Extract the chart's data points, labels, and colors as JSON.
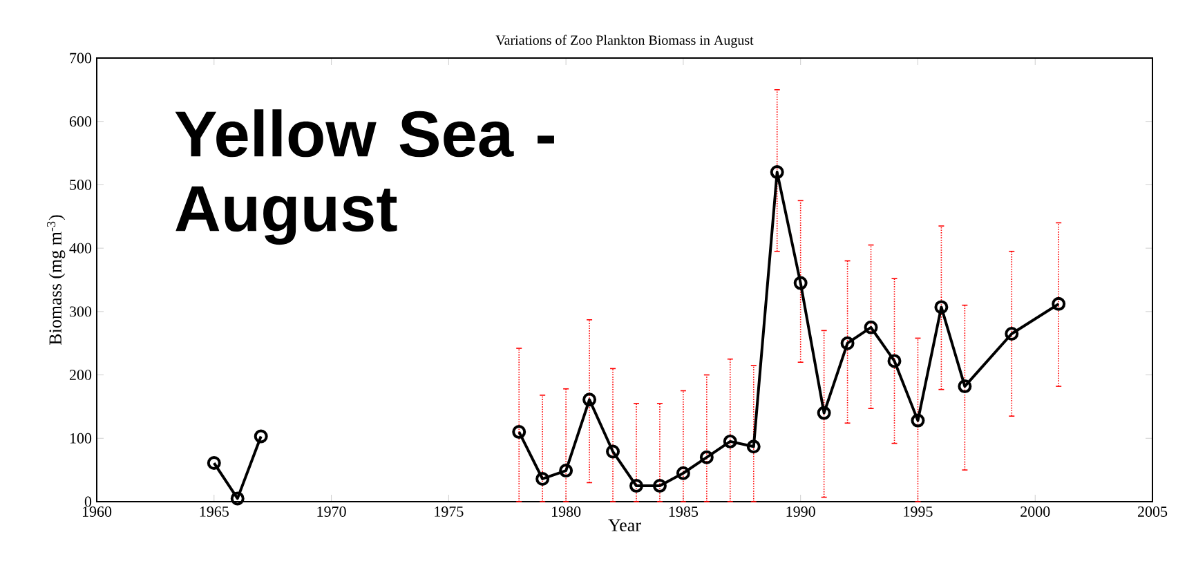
{
  "chart_data": {
    "type": "line",
    "title": "Variations of Zoo Plankton Biomass in August",
    "xlabel": "Year",
    "ylabel": "Biomass (mg m$^{-3}$)",
    "annotations": [
      "Yellow Sea - August"
    ],
    "xlim": [
      1960,
      2005
    ],
    "xticks": [
      1960,
      1965,
      1970,
      1975,
      1980,
      1985,
      1990,
      1995,
      2000,
      2005
    ],
    "ylim": [
      0,
      700
    ],
    "yticks": [
      0,
      100,
      200,
      300,
      400,
      500,
      600,
      700
    ],
    "marker": "circle",
    "line_style": "solid",
    "series": [
      {
        "color": "#000000",
        "x": [
          1965,
          1966,
          1967,
          1968,
          1978,
          1979,
          1980,
          1981,
          1982,
          1983,
          1984,
          1985,
          1986,
          1987,
          1988,
          1989,
          1990,
          1991,
          1992,
          1993,
          1994,
          1995,
          1996,
          1997,
          1999,
          2001
        ],
        "values": [
          61,
          5,
          103,
          null,
          110,
          36,
          49,
          161,
          79,
          25,
          25,
          45,
          70,
          95,
          87,
          520,
          345,
          140,
          250,
          275,
          222,
          128,
          307,
          182,
          265,
          312
        ],
        "errors": [
          null,
          null,
          null,
          null,
          [
            0,
            242
          ],
          [
            0,
            168
          ],
          [
            0,
            178
          ],
          [
            30,
            287
          ],
          [
            0,
            210
          ],
          [
            0,
            155
          ],
          [
            0,
            155
          ],
          [
            0,
            175
          ],
          [
            0,
            200
          ],
          [
            0,
            225
          ],
          [
            0,
            215
          ],
          [
            395,
            650
          ],
          [
            220,
            475
          ],
          [
            7,
            270
          ],
          [
            124,
            380
          ],
          [
            147,
            405
          ],
          [
            92,
            352
          ],
          [
            0,
            258
          ],
          [
            177,
            435
          ],
          [
            50,
            310
          ],
          [
            135,
            395
          ],
          [
            182,
            440
          ]
        ]
      }
    ]
  }
}
